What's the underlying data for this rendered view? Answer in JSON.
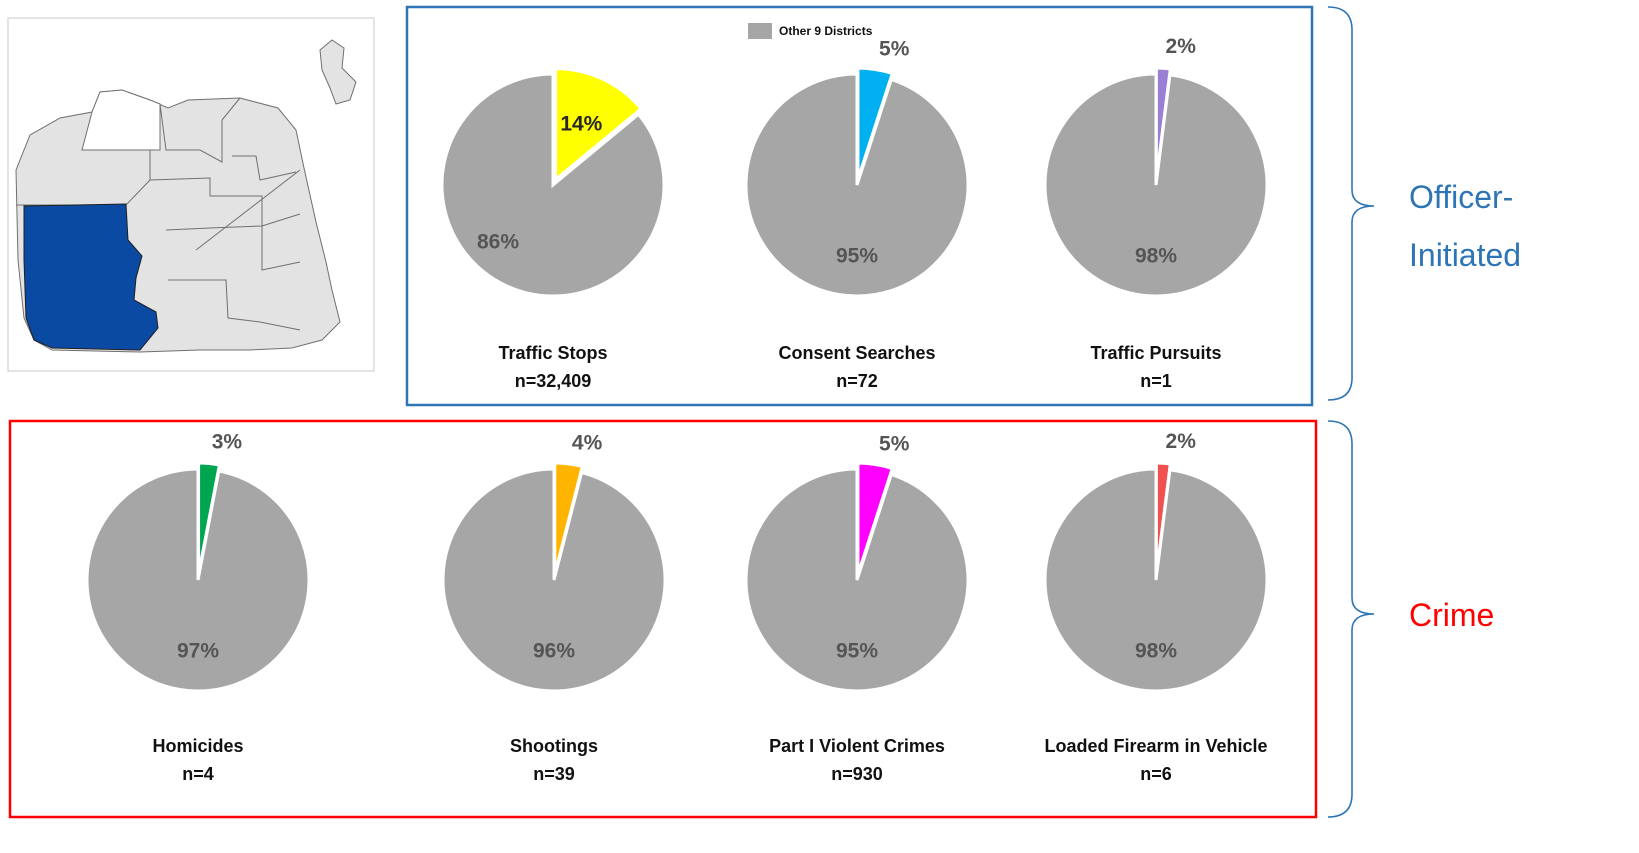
{
  "legend": {
    "label": "Other 9 Districts",
    "color": "#a6a6a6"
  },
  "group_labels": {
    "officer_line1": "Officer-",
    "officer_line2": "Initiated",
    "crime": "Crime"
  },
  "colors": {
    "officer_box": "#2e75b6",
    "crime_box": "#ff0000",
    "map_highlight": "#0b4aa2",
    "map_other": "#e3e3e3"
  },
  "chart_data": [
    {
      "type": "pie",
      "title": "Traffic Stops",
      "n_label": "n=32,409",
      "slices": [
        {
          "label": "14%",
          "value": 14,
          "color": "#ffff00"
        },
        {
          "label": "86%",
          "value": 86,
          "color": "#a6a6a6"
        }
      ]
    },
    {
      "type": "pie",
      "title": "Consent Searches",
      "n_label": "n=72",
      "slices": [
        {
          "label": "5%",
          "value": 5,
          "color": "#00b0f0"
        },
        {
          "label": "95%",
          "value": 95,
          "color": "#a6a6a6"
        }
      ]
    },
    {
      "type": "pie",
      "title": "Traffic Pursuits",
      "n_label": "n=1",
      "slices": [
        {
          "label": "2%",
          "value": 2,
          "color": "#9b7fd4"
        },
        {
          "label": "98%",
          "value": 98,
          "color": "#a6a6a6"
        }
      ]
    },
    {
      "type": "pie",
      "title": "Homicides",
      "n_label": "n=4",
      "slices": [
        {
          "label": "3%",
          "value": 3,
          "color": "#00a550"
        },
        {
          "label": "97%",
          "value": 97,
          "color": "#a6a6a6"
        }
      ]
    },
    {
      "type": "pie",
      "title": "Shootings",
      "n_label": "n=39",
      "slices": [
        {
          "label": "4%",
          "value": 4,
          "color": "#ffb400"
        },
        {
          "label": "96%",
          "value": 96,
          "color": "#a6a6a6"
        }
      ]
    },
    {
      "type": "pie",
      "title": "Part I Violent Crimes",
      "n_label": "n=930",
      "slices": [
        {
          "label": "5%",
          "value": 5,
          "color": "#ff00ff"
        },
        {
          "label": "95%",
          "value": 95,
          "color": "#a6a6a6"
        }
      ]
    },
    {
      "type": "pie",
      "title": "Loaded Firearm in Vehicle",
      "n_label": "n=6",
      "slices": [
        {
          "label": "2%",
          "value": 2,
          "color": "#f05050"
        },
        {
          "label": "98%",
          "value": 98,
          "color": "#a6a6a6"
        }
      ]
    }
  ]
}
